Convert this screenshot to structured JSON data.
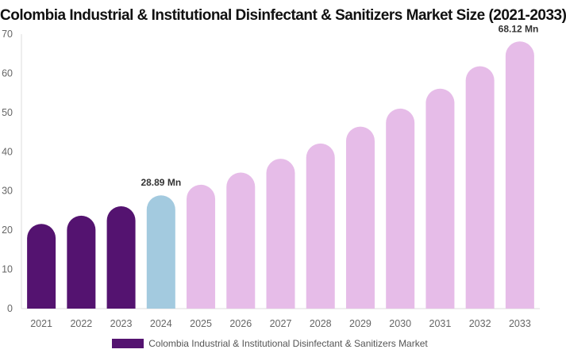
{
  "chart_data": {
    "type": "bar",
    "title": "Colombia Industrial & Institutional Disinfectant & Sanitizers Market Size (2021-2033)",
    "categories": [
      "2021",
      "2022",
      "2023",
      "2024",
      "2025",
      "2026",
      "2027",
      "2028",
      "2029",
      "2030",
      "2031",
      "2032",
      "2033"
    ],
    "series": [
      {
        "name": "Colombia Industrial & Institutional Disinfectant & Sanitizers Market",
        "values": [
          21.6,
          23.7,
          26.1,
          28.89,
          31.6,
          34.7,
          38.2,
          42.1,
          46.4,
          51.0,
          56.1,
          61.8,
          68.12
        ]
      }
    ],
    "data_labels": {
      "3": "28.89 Mn",
      "12": "68.12 Mn"
    },
    "ylim": [
      0,
      70
    ],
    "yticks": [
      0,
      10,
      20,
      30,
      40,
      50,
      60,
      70
    ],
    "xlabel": "",
    "ylabel": "",
    "grid": false,
    "legend_position": "bottom",
    "colors": {
      "historical": "#541370",
      "base_year": "#a3cadf",
      "forecast": "#e6bce8",
      "legend": "#541370"
    }
  }
}
